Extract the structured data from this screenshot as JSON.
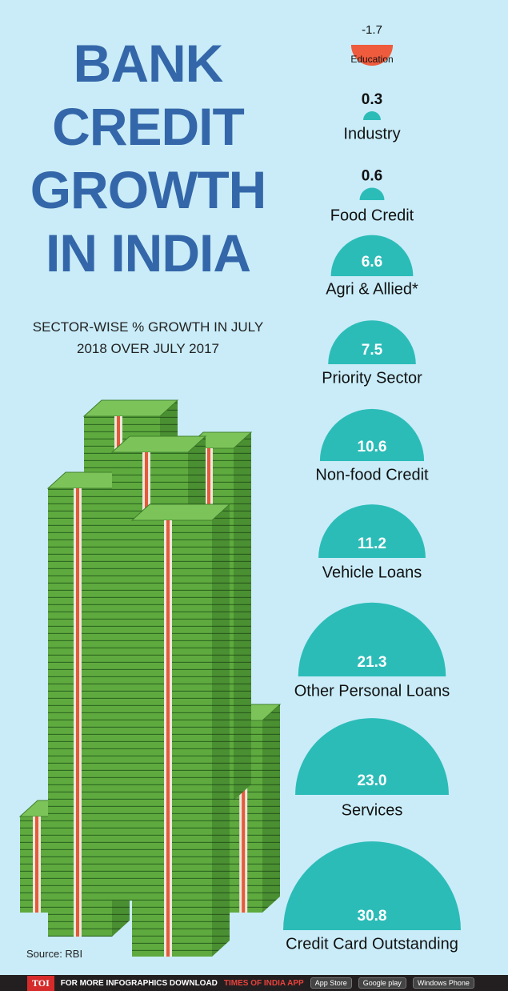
{
  "chart_data": {
    "type": "semicircle",
    "title": "BANK CREDIT GROWTH IN INDIA",
    "subtitle": "SECTOR-WISE % GROWTH IN JULY 2018 OVER JULY 2017",
    "categories": [
      "Education",
      "Industry",
      "Food Credit",
      "Agri & Allied*",
      "Priority Sector",
      "Non-food Credit",
      "Vehicle Loans",
      "Other Personal Loans",
      "Services",
      "Credit Card Outstanding"
    ],
    "values": [
      -1.7,
      0.3,
      0.6,
      6.6,
      7.5,
      10.6,
      11.2,
      21.3,
      23.0,
      30.8
    ],
    "value_labels": [
      "-1.7",
      "0.3",
      "0.6",
      "6.6",
      "7.5",
      "10.6",
      "11.2",
      "21.3",
      "23.0",
      "30.8"
    ],
    "color": "#2cbcb8",
    "negative_color": "#ef5b3d",
    "source": "Source: RBI"
  },
  "footer": {
    "brand": "TOI",
    "text": "FOR MORE  INFOGRAPHICS DOWNLOAD",
    "app": "TIMES OF INDIA  APP",
    "stores": [
      "App Store",
      "Google play",
      "Windows Phone"
    ]
  }
}
